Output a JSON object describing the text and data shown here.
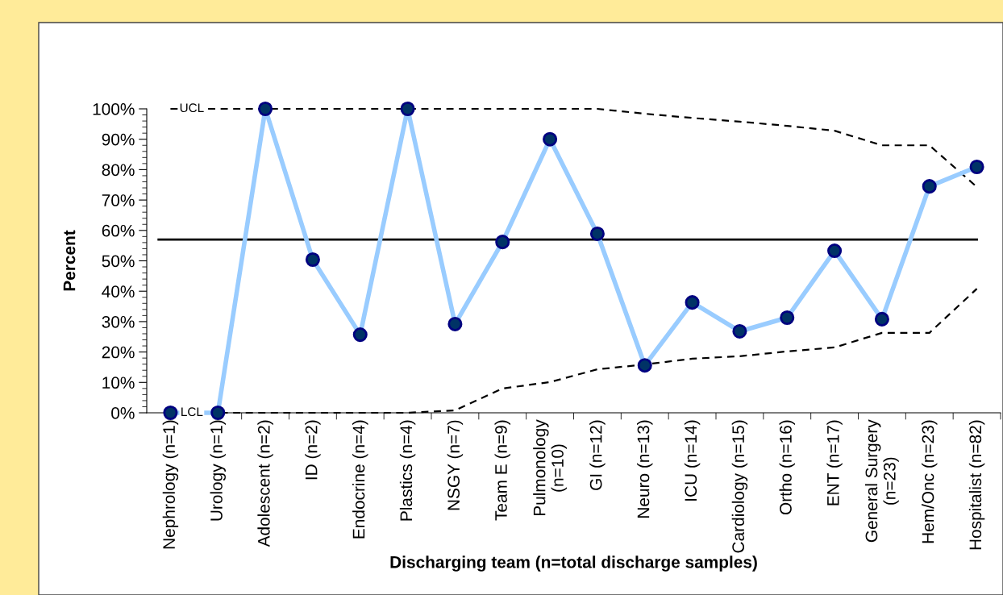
{
  "chart_data": {
    "type": "line",
    "xlabel": "Discharging team (n=total discharge samples)",
    "ylabel": "Percent",
    "categories": [
      "Nephrology (n=1)",
      "Urology (n=1)",
      "Adolescent (n=2)",
      "ID (n=2)",
      "Endocrine (n=4)",
      "Plastics (n=4)",
      "NSGY (n=7)",
      "Team E (n=9)",
      "Pulmonology\n(n=10)",
      "GI (n=12)",
      "Neuro (n=13)",
      "ICU (n=14)",
      "Cardiology (n=15)",
      "Ortho (n=16)",
      "ENT (n=17)",
      "General Surgery\n(n=23)",
      "Hem/Onc (n=23)",
      "Hospitalist (n=82)"
    ],
    "series": [
      {
        "color": "#99ccff",
        "marker": "circle",
        "line_style": "solid",
        "values": [
          0,
          0,
          100,
          50.4,
          25.7,
          100,
          29.2,
          56.2,
          90,
          58.9,
          15.6,
          36.3,
          26.8,
          31.3,
          53.3,
          30.8,
          74.5,
          80.9
        ]
      },
      {
        "name": "UCL",
        "type": "line",
        "color": "#000000",
        "marker": "none",
        "line_style": "dashed",
        "values": [
          100,
          100,
          100,
          100,
          100,
          100,
          100,
          100,
          100,
          100,
          98.4,
          97,
          95.8,
          94.4,
          92.8,
          88,
          88,
          74.3
        ]
      },
      {
        "name": "LCL",
        "type": "line",
        "color": "#000000",
        "marker": "none",
        "line_style": "dashed",
        "values": [
          0,
          0,
          0,
          0,
          0,
          0,
          0.8,
          8,
          10.1,
          14.3,
          15.9,
          17.8,
          18.6,
          20.2,
          21.5,
          26.3,
          26.3,
          40.8
        ]
      }
    ],
    "ref_lines": [
      {
        "axis": "y",
        "value": 57,
        "color": "#000000",
        "line_style": "solid"
      }
    ],
    "ylim": [
      0,
      100
    ],
    "yticks": [
      {
        "value": 0,
        "label": "0%"
      },
      {
        "value": 10,
        "label": "10%"
      },
      {
        "value": 20,
        "label": "20%"
      },
      {
        "value": 30,
        "label": "30%"
      },
      {
        "value": 40,
        "label": "40%"
      },
      {
        "value": 50,
        "label": "50%"
      },
      {
        "value": 60,
        "label": "60%"
      },
      {
        "value": 70,
        "label": "70%"
      },
      {
        "value": 80,
        "label": "80%"
      },
      {
        "value": 90,
        "label": "90%"
      },
      {
        "value": 100,
        "label": "100%"
      }
    ],
    "grid": false,
    "legend": false
  }
}
